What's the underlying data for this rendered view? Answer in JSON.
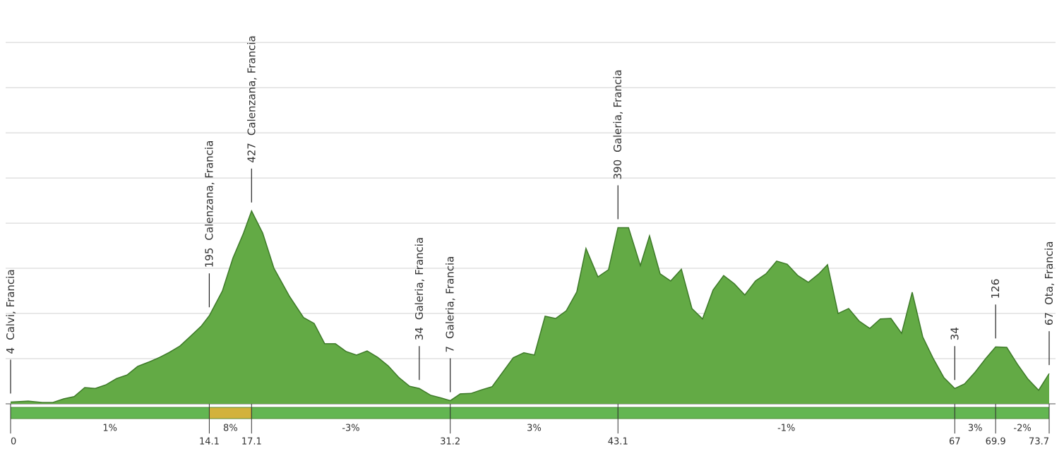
{
  "chart_data": {
    "type": "area",
    "color": "#63aa45",
    "line_color": "#3d7a28",
    "x": [
      0,
      1.25,
      2.25,
      3.0,
      3.76,
      4.51,
      5.26,
      6.01,
      6.76,
      7.52,
      8.27,
      9.02,
      9.77,
      10.52,
      11.27,
      12.02,
      12.78,
      13.53,
      14.1,
      15.03,
      15.78,
      16.53,
      17.1,
      17.89,
      18.69,
      19.79,
      20.79,
      21.54,
      22.29,
      23.05,
      23.8,
      24.55,
      25.3,
      26.05,
      26.8,
      27.56,
      28.31,
      29.0,
      29.81,
      30.56,
      31.2,
      31.91,
      32.67,
      33.42,
      34.17,
      34.92,
      35.67,
      36.42,
      37.17,
      37.93,
      38.68,
      39.43,
      40.18,
      40.83,
      41.68,
      42.43,
      43.1,
      43.85,
      44.69,
      45.34,
      46.09,
      46.84,
      47.6,
      48.35,
      49.1,
      49.85,
      50.6,
      51.35,
      52.1,
      52.86,
      53.61,
      54.36,
      55.11,
      55.86,
      56.61,
      57.36,
      57.97,
      58.72,
      59.47,
      60.22,
      60.97,
      61.72,
      62.47,
      63.23,
      63.98,
      64.73,
      65.48,
      66.23,
      67,
      67.69,
      68.44,
      69.19,
      69.9,
      70.69,
      71.44,
      72.19,
      72.95,
      73.7
    ],
    "values": [
      4,
      6,
      3,
      3,
      11,
      16,
      36,
      34,
      42,
      56,
      64,
      83,
      92,
      102,
      114,
      128,
      150,
      172,
      195,
      250,
      323,
      378,
      427,
      378,
      300,
      238,
      191,
      178,
      133,
      133,
      116,
      108,
      117,
      103,
      84,
      58,
      39,
      34,
      19,
      13,
      7,
      22,
      23,
      31,
      38,
      70,
      102,
      113,
      108,
      194,
      189,
      206,
      248,
      344,
      281,
      297,
      390,
      390,
      306,
      372,
      288,
      272,
      298,
      211,
      188,
      252,
      284,
      266,
      241,
      272,
      288,
      316,
      309,
      284,
      269,
      288,
      308,
      200,
      211,
      183,
      167,
      188,
      189,
      156,
      247,
      148,
      100,
      58,
      34,
      44,
      70,
      100,
      126,
      125,
      88,
      55,
      30,
      67
    ],
    "xlim": [
      0,
      73.7
    ],
    "ylim": [
      0,
      894
    ],
    "xticks": [
      0,
      14.1,
      17.1,
      31.2,
      43.1,
      67,
      69.9,
      73.7
    ],
    "yticks": [
      0,
      100,
      200,
      300,
      400,
      500,
      600,
      700,
      800
    ],
    "ytick_labels": false,
    "grid": true,
    "gradient_segments": [
      {
        "label": "1%",
        "color": "#63b652"
      },
      {
        "label": "8%",
        "color": "#d2b23c"
      },
      {
        "label": "-3%",
        "color": "#63b652"
      },
      {
        "label": "3%",
        "color": "#63b652"
      },
      {
        "label": "-1%",
        "color": "#63b652"
      },
      {
        "label": "3%",
        "color": "#63b652"
      },
      {
        "label": "-2%",
        "color": "#63b652"
      }
    ],
    "annotations": [
      {
        "x": 0,
        "elevation": 4,
        "place": "Calvi, Francia"
      },
      {
        "x": 14.1,
        "elevation": 195,
        "place": "Calenzana, Francia"
      },
      {
        "x": 17.1,
        "elevation": 427,
        "place": "Calenzana, Francia"
      },
      {
        "x": 29.0,
        "elevation": 34,
        "place": "Galeria, Francia"
      },
      {
        "x": 31.2,
        "elevation": 7,
        "place": "Galeria, Francia"
      },
      {
        "x": 43.1,
        "elevation": 390,
        "place": "Galeria, Francia"
      },
      {
        "x": 67,
        "elevation": 34
      },
      {
        "x": 69.9,
        "elevation": 126
      },
      {
        "x": 73.7,
        "elevation": 67,
        "place": "Ota, Francia"
      }
    ]
  }
}
